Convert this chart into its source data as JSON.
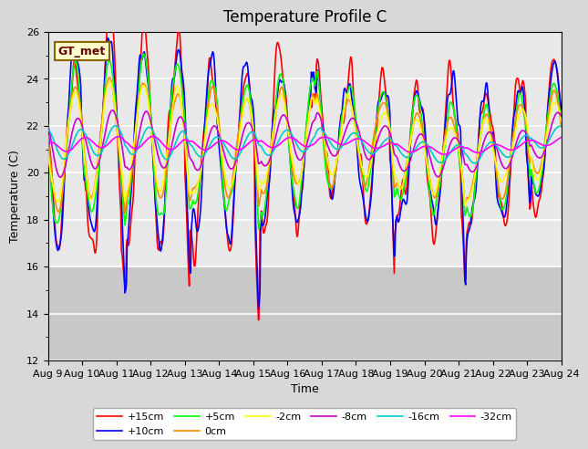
{
  "title": "Temperature Profile C",
  "xlabel": "Time",
  "ylabel": "Temperature (C)",
  "ylim": [
    12,
    26
  ],
  "xlim": [
    0,
    360
  ],
  "x_tick_labels": [
    "Aug 9",
    "Aug 10",
    "Aug 11",
    "Aug 12",
    "Aug 13",
    "Aug 14",
    "Aug 15",
    "Aug 16",
    "Aug 17",
    "Aug 18",
    "Aug 19",
    "Aug 20",
    "Aug 21",
    "Aug 22",
    "Aug 23",
    "Aug 24"
  ],
  "x_tick_positions": [
    0,
    24,
    48,
    72,
    96,
    120,
    144,
    168,
    192,
    216,
    240,
    264,
    288,
    312,
    336,
    360
  ],
  "series_labels": [
    "+15cm",
    "+10cm",
    "+5cm",
    "0cm",
    "-2cm",
    "-8cm",
    "-16cm",
    "-32cm"
  ],
  "series_colors": [
    "#ff0000",
    "#0000ff",
    "#00ff00",
    "#ff8800",
    "#ffff00",
    "#cc00cc",
    "#00cccc",
    "#ff00ff"
  ],
  "series_linewidths": [
    1.2,
    1.2,
    1.2,
    1.2,
    1.2,
    1.2,
    1.2,
    1.2
  ],
  "annotation_text": "GT_met",
  "annotation_bbox_facecolor": "#ffffcc",
  "annotation_bbox_edgecolor": "#886600",
  "fig_facecolor": "#d8d8d8",
  "plot_bg_color": "#e8e8e8",
  "shaded_bg_color": "#c8c8c8",
  "grid_color": "#ffffff",
  "title_fontsize": 12,
  "axis_label_fontsize": 9,
  "tick_fontsize": 8,
  "legend_fontsize": 8
}
